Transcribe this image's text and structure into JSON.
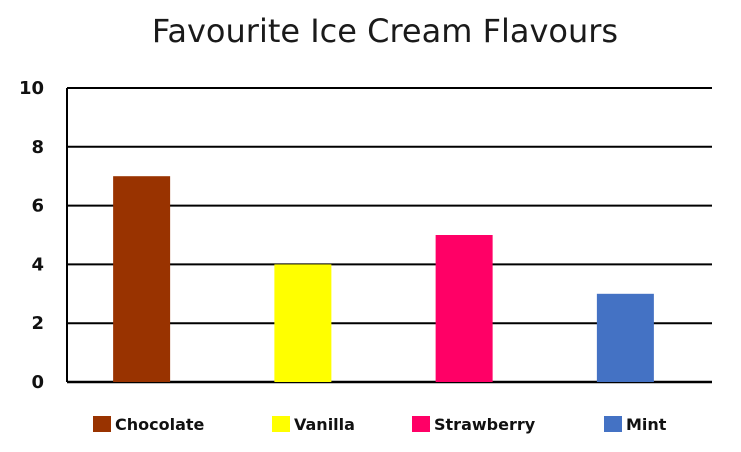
{
  "chart_data": {
    "type": "bar",
    "title": "Favourite Ice Cream Flavours",
    "xlabel": "",
    "ylabel": "",
    "categories": [
      "Chocolate",
      "Vanilla",
      "Strawberry",
      "Mint"
    ],
    "values": [
      7,
      4,
      5,
      3
    ],
    "colors": [
      "#993300",
      "#ffff00",
      "#ff0066",
      "#4472c4"
    ],
    "ylim": [
      0,
      10
    ],
    "yticks": [
      0,
      2,
      4,
      6,
      8,
      10
    ],
    "grid": true,
    "legend": {
      "placement": "bottom",
      "entries": [
        "Chocolate",
        "Vanilla",
        "Strawberry",
        "Mint"
      ]
    }
  }
}
